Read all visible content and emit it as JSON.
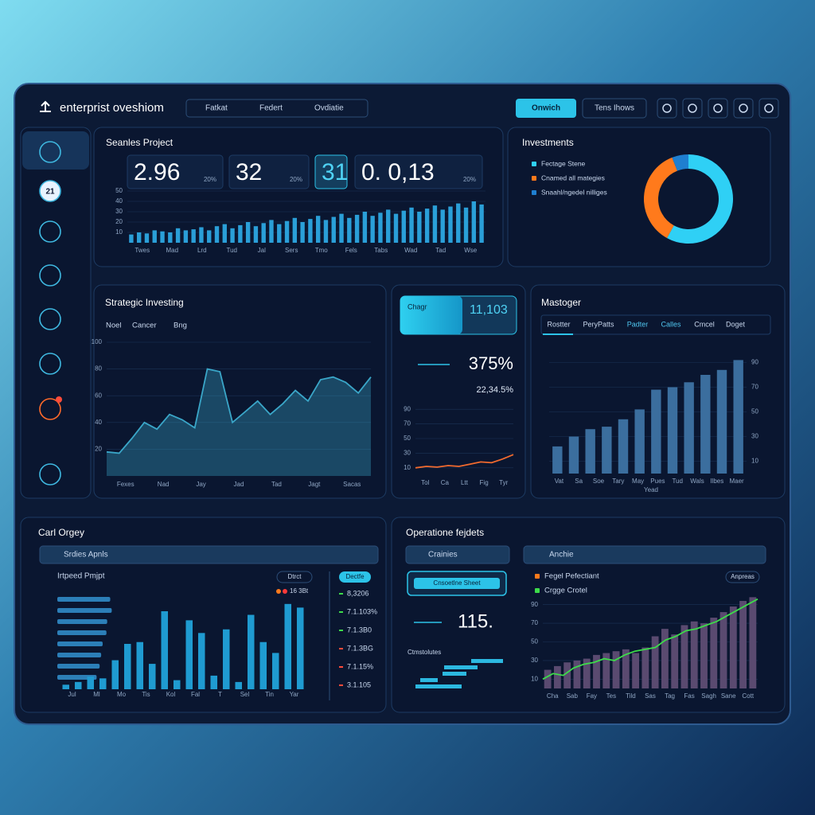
{
  "header": {
    "title": "enterprist oveshiom",
    "tabs": [
      "Fatkat",
      "Federt",
      "Ovdiatie"
    ],
    "buttons": [
      "Onwich",
      "Tens Ihows"
    ]
  },
  "sidebar": {
    "badge": "21"
  },
  "sales": {
    "title": "Seanles Project",
    "kpis": [
      {
        "value": "2.96",
        "note": "20%"
      },
      {
        "value": "32",
        "note": "20%"
      },
      {
        "value": "31"
      },
      {
        "value": "0. 0,13",
        "note": "20%"
      }
    ],
    "chart": {
      "type": "bar",
      "color": "#2a9fd8",
      "ylim": [
        0,
        50
      ],
      "yticks": [
        10,
        20,
        30,
        40,
        50
      ],
      "x_labels": [
        "Twes",
        "Mad",
        "Lrd",
        "Tud",
        "Jal",
        "Sers",
        "Tmo",
        "Fels",
        "Tabs",
        "Wad",
        "Tad",
        "Wse"
      ],
      "values": [
        8,
        10,
        9,
        12,
        11,
        10,
        14,
        12,
        13,
        15,
        12,
        16,
        18,
        14,
        17,
        20,
        16,
        19,
        22,
        18,
        21,
        24,
        20,
        23,
        26,
        22,
        25,
        28,
        24,
        27,
        30,
        26,
        29,
        32,
        28,
        31,
        34,
        30,
        33,
        36,
        32,
        35,
        38,
        34,
        40,
        37
      ]
    }
  },
  "investments": {
    "title": "Investments",
    "chart": {
      "type": "pie",
      "categories": [
        "Fectage Stene",
        "Cnamed all mategies",
        "Snaahl/ngedel nilliges"
      ],
      "values": [
        58,
        36,
        6
      ],
      "colors": [
        "#2fd0f5",
        "#ff7a1c",
        "#1f7fd0"
      ]
    }
  },
  "strategic": {
    "title": "Strategic Investing",
    "tabs": [
      "Noel",
      "Cancer",
      "Bng"
    ],
    "chart": {
      "type": "area",
      "color": "#3aa6c8",
      "ylim": [
        0,
        100
      ],
      "yticks": [
        20,
        40,
        60,
        80,
        100
      ],
      "x_labels": [
        "Fexes",
        "Nad",
        "Jay",
        "Jad",
        "Tad",
        "Jagt",
        "Sacas"
      ],
      "values": [
        18,
        17,
        28,
        40,
        35,
        46,
        42,
        36,
        80,
        78,
        40,
        48,
        56,
        46,
        54,
        64,
        56,
        72,
        74,
        70,
        62,
        74
      ]
    }
  },
  "change": {
    "label": "Chagr",
    "value": "11,103",
    "big": "375%",
    "sub": "22,34.5%",
    "chart": {
      "type": "line",
      "color": "#f26a2e",
      "ylim": [
        0,
        100
      ],
      "yticks": [
        10,
        30,
        50,
        70,
        90
      ],
      "x_labels": [
        "Tol",
        "Ca",
        "Ltt",
        "Fig",
        "Tyr"
      ],
      "values": [
        10,
        12,
        11,
        13,
        12,
        15,
        18,
        17,
        22,
        28
      ]
    }
  },
  "manager": {
    "title": "Mastoger",
    "tabs": [
      "Rostter",
      "PeryPatts",
      "Padter",
      "Calles",
      "Cmcel",
      "Doget"
    ],
    "chart": {
      "type": "bar",
      "color": "#3b6e9e",
      "ylim": [
        0,
        100
      ],
      "yticks": [
        10,
        30,
        50,
        70,
        90
      ],
      "x_title": "Yead",
      "x_labels": [
        "Vat",
        "Sa",
        "Soe",
        "Tary",
        "May",
        "Pues",
        "Tud",
        "Wals",
        "Ilbes",
        "Maer"
      ],
      "values": [
        22,
        30,
        36,
        38,
        44,
        52,
        68,
        70,
        74,
        80,
        84,
        92
      ]
    }
  },
  "category": {
    "title": "Carl Orgey",
    "dropdown": "Srdies Apnls",
    "label": "Irtpeed Pmjpt",
    "tag": "Dtrct",
    "legend": "16 3Bt",
    "badge": "Dectfe",
    "list": [
      "8,3206",
      "7.1.103%",
      "7.1.3B0",
      "7.1.3BG",
      "7.1.15%",
      "3.1.105"
    ],
    "hbars": {
      "type": "bar",
      "color": "#2c7fb8",
      "xlim": [
        0,
        100
      ],
      "values": [
        70,
        72,
        66,
        65,
        60,
        58,
        56,
        52
      ]
    },
    "vbars": {
      "type": "bar",
      "color": "#1f9bd1",
      "ylim": [
        0,
        100
      ],
      "x_labels": [
        "Jul",
        "Ml",
        "Mo",
        "Tis",
        "Kol",
        "Fal",
        "T",
        "Sel",
        "Tin",
        "Yar"
      ],
      "values": [
        5,
        8,
        14,
        12,
        32,
        50,
        52,
        28,
        86,
        10,
        76,
        62,
        15,
        66,
        8,
        82,
        52,
        40,
        94,
        90
      ]
    }
  },
  "operations": {
    "title": "Operatione fejdets",
    "dropdown": "Crainies",
    "button": "Cnsoetlne Sheet",
    "big": "115.",
    "label": "Ctmstolutes",
    "gantt": {
      "type": "bar",
      "color": "#2cb8e0",
      "xlim": [
        0,
        120
      ],
      "starts": [
        72,
        38,
        36,
        8,
        2
      ],
      "values": [
        40,
        42,
        30,
        22,
        58
      ]
    },
    "right": {
      "dropdown": "Anchie",
      "badge": "Anpreas",
      "chart": {
        "type": "bar",
        "ylim": [
          0,
          100
        ],
        "yticks": [
          10,
          30,
          50,
          70,
          90
        ],
        "x_labels": [
          "Cha",
          "Sab",
          "Fay",
          "Tes",
          "Tild",
          "Sas",
          "Tag",
          "Fas",
          "Sagh",
          "Sane",
          "Cott"
        ],
        "series": [
          {
            "name": "Fegel Pefectiant",
            "color": "#5a4a70",
            "type": "bar",
            "values": [
              20,
              24,
              28,
              30,
              32,
              36,
              38,
              40,
              42,
              38,
              44,
              56,
              64,
              58,
              68,
              72,
              70,
              76,
              82,
              88,
              94,
              98
            ]
          },
          {
            "name": "Crgge Crotel",
            "color": "#3ddc4a",
            "type": "line",
            "values": [
              10,
              16,
              14,
              22,
              26,
              28,
              32,
              30,
              36,
              40,
              42,
              44,
              52,
              56,
              62,
              64,
              68,
              72,
              78,
              84,
              90,
              96
            ]
          }
        ]
      }
    }
  }
}
